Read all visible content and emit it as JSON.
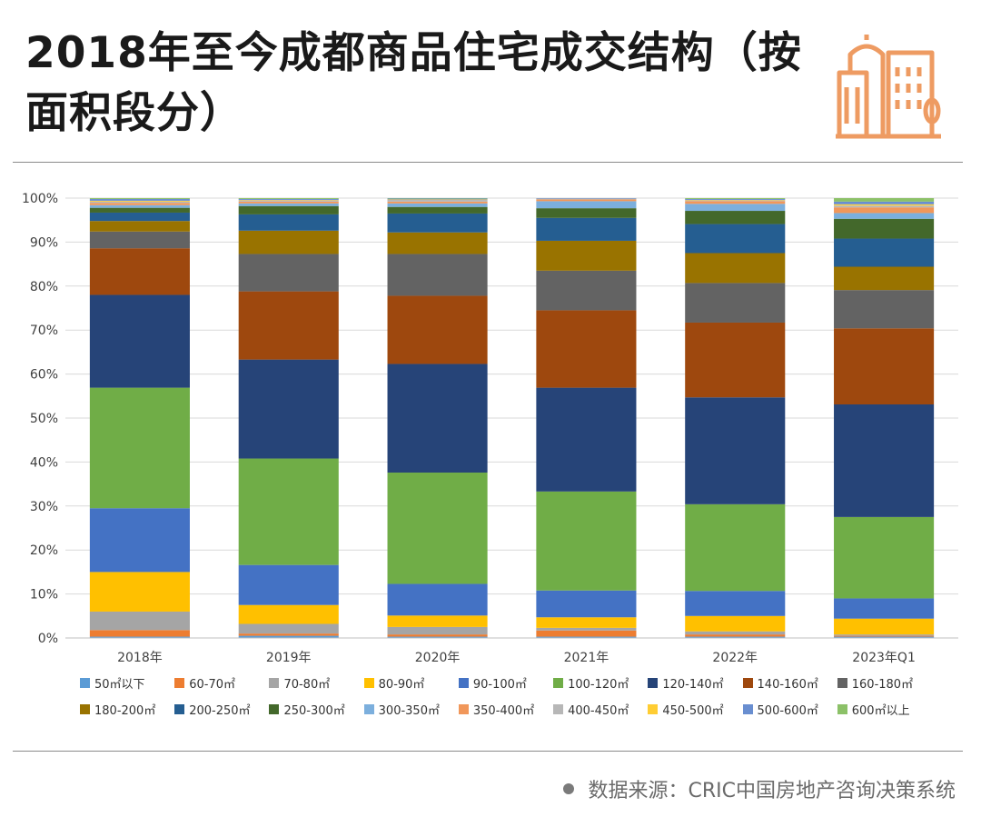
{
  "page": {
    "title": "2018年至今成都商品住宅成交结构（按面积段分）",
    "source": "数据来源：CRIC中国房地产咨询决策系统"
  },
  "icons": {
    "logo": "city-buildings-icon",
    "source_dot": "bullet-icon"
  },
  "colors": {
    "logo": "#EE9B62"
  },
  "chart_data": {
    "type": "bar",
    "stacked": true,
    "title": "",
    "xlabel": "",
    "ylabel": "",
    "ylim": [
      0,
      100
    ],
    "yticks": [
      "0%",
      "10%",
      "20%",
      "30%",
      "40%",
      "50%",
      "60%",
      "70%",
      "80%",
      "90%",
      "100%"
    ],
    "grid": true,
    "legend": "bottom",
    "categories": [
      "2018年",
      "2019年",
      "2020年",
      "2021年",
      "2022年",
      "2023年Q1"
    ],
    "series": [
      {
        "name": "50㎡以下",
        "color": "#5B9BD5",
        "values": [
          0.3,
          0.5,
          0.3,
          0.3,
          0.3,
          0.3
        ]
      },
      {
        "name": "60-70㎡",
        "color": "#ED7D31",
        "values": [
          1.5,
          0.5,
          0.5,
          1.4,
          0.5,
          0.2
        ]
      },
      {
        "name": "70-80㎡",
        "color": "#A5A5A5",
        "values": [
          4.2,
          2.2,
          1.7,
          0.6,
          0.7,
          0.3
        ]
      },
      {
        "name": "80-90㎡",
        "color": "#FFC000",
        "values": [
          9.0,
          4.3,
          2.6,
          2.4,
          3.5,
          3.6
        ]
      },
      {
        "name": "90-100㎡",
        "color": "#4472C4",
        "values": [
          14.5,
          9.1,
          7.2,
          6.1,
          5.7,
          4.6
        ]
      },
      {
        "name": "100-120㎡",
        "color": "#70AD47",
        "values": [
          27.4,
          24.2,
          25.3,
          22.5,
          19.7,
          18.5
        ]
      },
      {
        "name": "120-140㎡",
        "color": "#264478",
        "values": [
          21.1,
          22.5,
          24.7,
          23.6,
          24.3,
          25.6
        ]
      },
      {
        "name": "140-160㎡",
        "color": "#9E480E",
        "values": [
          10.6,
          15.5,
          15.5,
          17.6,
          17.0,
          17.3
        ]
      },
      {
        "name": "160-180㎡",
        "color": "#636363",
        "values": [
          3.8,
          8.5,
          9.5,
          9.0,
          9.0,
          8.7
        ]
      },
      {
        "name": "180-200㎡",
        "color": "#997300",
        "values": [
          2.4,
          5.3,
          4.9,
          6.8,
          6.8,
          5.3
        ]
      },
      {
        "name": "200-250㎡",
        "color": "#255E91",
        "values": [
          1.9,
          3.7,
          4.3,
          5.2,
          6.6,
          6.4
        ]
      },
      {
        "name": "250-300㎡",
        "color": "#43682B",
        "values": [
          1.1,
          1.9,
          1.5,
          2.2,
          3.0,
          4.5
        ]
      },
      {
        "name": "300-350㎡",
        "color": "#7CAFDD",
        "values": [
          0.6,
          0.6,
          0.8,
          1.6,
          1.6,
          1.3
        ]
      },
      {
        "name": "350-400㎡",
        "color": "#F1975A",
        "values": [
          0.5,
          0.4,
          0.4,
          0.4,
          0.6,
          1.3
        ]
      },
      {
        "name": "400-450㎡",
        "color": "#B7B7B7",
        "values": [
          0.3,
          0.3,
          0.4,
          0.2,
          0.2,
          0.4
        ]
      },
      {
        "name": "450-500㎡",
        "color": "#FFCD33",
        "values": [
          0.2,
          0.1,
          0.1,
          0.0,
          0.1,
          0.3
        ]
      },
      {
        "name": "500-600㎡",
        "color": "#698ED0",
        "values": [
          0.4,
          0.2,
          0.2,
          0.1,
          0.2,
          0.6
        ]
      },
      {
        "name": "600㎡以上",
        "color": "#8CC168",
        "values": [
          0.2,
          0.2,
          0.1,
          0.0,
          0.2,
          0.8
        ]
      }
    ]
  }
}
